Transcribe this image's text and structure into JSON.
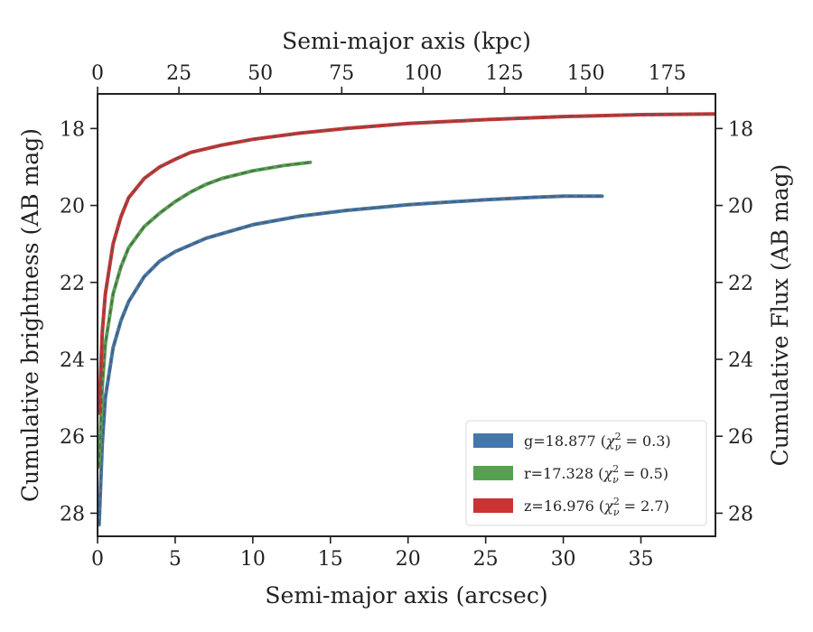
{
  "chart_data": {
    "type": "line",
    "xlabel": "Semi-major axis (arcsec)",
    "ylabel": "Cumulative brightness (AB mag)",
    "top_xlabel": "Semi-major axis (kpc)",
    "right_ylabel": "Cumulative Flux (AB mag)",
    "xlim": [
      0,
      39.8
    ],
    "ylim": [
      28.6,
      17.1
    ],
    "top_xlim": [
      0,
      189.8
    ],
    "y_inverted": true,
    "x_ticks": [
      0,
      5,
      10,
      15,
      20,
      25,
      30,
      35
    ],
    "y_ticks": [
      18,
      20,
      22,
      24,
      26,
      28
    ],
    "top_x_ticks": [
      0,
      25,
      50,
      75,
      100,
      125,
      150,
      175
    ],
    "x_tick_labels": [
      "0",
      "5",
      "10",
      "15",
      "20",
      "25",
      "30",
      "35"
    ],
    "y_tick_labels": [
      "18",
      "20",
      "22",
      "24",
      "26",
      "28"
    ],
    "top_x_tick_labels": [
      "0",
      "25",
      "50",
      "75",
      "100",
      "125",
      "150",
      "175"
    ],
    "grid": false,
    "legend_position": "lower-right",
    "series": [
      {
        "name": "g=18.877 (χ²ᵥ = 0.3)",
        "legend_main": "g=18.877 (",
        "legend_var": "χ",
        "legend_sup": "2",
        "legend_sub": "ν",
        "legend_tail": " = 0.3)",
        "color": "#4477aa",
        "x": [
          0.1,
          0.3,
          0.5,
          1,
          1.5,
          2,
          3,
          4,
          5,
          7,
          10,
          13,
          16,
          20,
          25,
          28,
          30,
          32.5
        ],
        "y": [
          28.3,
          26.2,
          25.0,
          23.7,
          23.0,
          22.5,
          21.85,
          21.45,
          21.2,
          20.85,
          20.5,
          20.28,
          20.13,
          19.98,
          19.85,
          19.79,
          19.76,
          19.76
        ]
      },
      {
        "name": "r=17.328 (χ²ᵥ = 0.5)",
        "legend_main": "r=17.328 (",
        "legend_var": "χ",
        "legend_sup": "2",
        "legend_sub": "ν",
        "legend_tail": " = 0.5)",
        "color": "#55a14f",
        "x": [
          0.1,
          0.3,
          0.5,
          1,
          1.5,
          2,
          3,
          4,
          5,
          6,
          7,
          8,
          10,
          12,
          13.7
        ],
        "y": [
          26.8,
          24.7,
          23.6,
          22.3,
          21.6,
          21.1,
          20.55,
          20.2,
          19.9,
          19.65,
          19.45,
          19.3,
          19.1,
          18.96,
          18.88
        ]
      },
      {
        "name": "z=16.976 (χ²ᵥ = 2.7)",
        "legend_main": "z=16.976 (",
        "legend_var": "χ",
        "legend_sup": "2",
        "legend_sub": "ν",
        "legend_tail": " = 2.7)",
        "color": "#cc3333",
        "x": [
          0.1,
          0.3,
          0.5,
          1,
          1.5,
          2,
          3,
          4,
          5,
          6,
          8,
          10,
          13,
          16,
          20,
          25,
          30,
          35,
          39.7
        ],
        "y": [
          25.4,
          23.3,
          22.3,
          21.0,
          20.3,
          19.8,
          19.3,
          19.0,
          18.8,
          18.62,
          18.43,
          18.28,
          18.12,
          18.0,
          17.87,
          17.77,
          17.69,
          17.64,
          17.62
        ]
      }
    ]
  }
}
